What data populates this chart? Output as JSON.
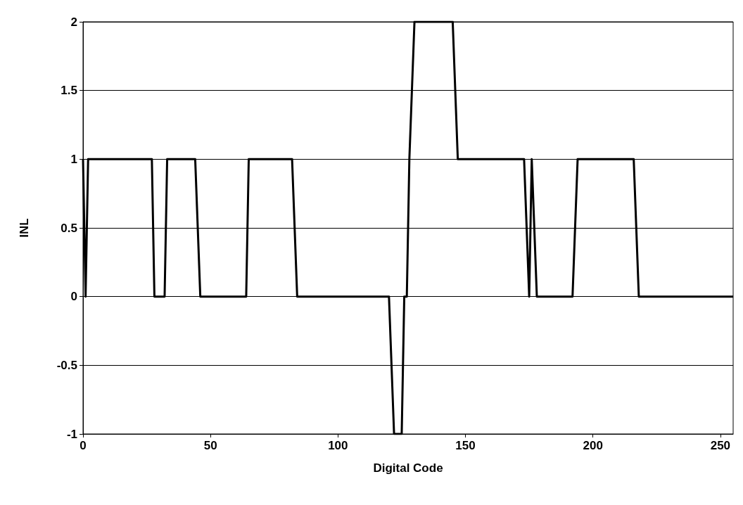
{
  "chart_data": {
    "type": "line",
    "xlabel": "Digital Code",
    "ylabel": "INL",
    "x": [
      0,
      1,
      2,
      27,
      28,
      32,
      33,
      44,
      46,
      64,
      65,
      82,
      84,
      120,
      122,
      125,
      126,
      127,
      128,
      130,
      145,
      147,
      173,
      175,
      176,
      178,
      192,
      194,
      216,
      218,
      255
    ],
    "series": [
      {
        "color": "#000000",
        "values": [
          1,
          0,
          1,
          1,
          0,
          0,
          1,
          1,
          0,
          0,
          1,
          1,
          0,
          0,
          -1,
          -1,
          0,
          0,
          1,
          2,
          2,
          1,
          1,
          0,
          1,
          0,
          0,
          1,
          1,
          0,
          0
        ]
      }
    ],
    "xlim": [
      0,
      255
    ],
    "xticks": [
      0,
      50,
      100,
      150,
      200,
      250
    ],
    "ylim": [
      -1,
      2
    ],
    "yticks": [
      -1,
      {
        "value": -0.5,
        "label": "-0.5"
      },
      0,
      {
        "value": 0.5,
        "label": "0.5"
      },
      1,
      {
        "value": 1.5,
        "label": "1.5"
      },
      2
    ],
    "grid": "y",
    "marker": "none",
    "line_style": "solid"
  }
}
